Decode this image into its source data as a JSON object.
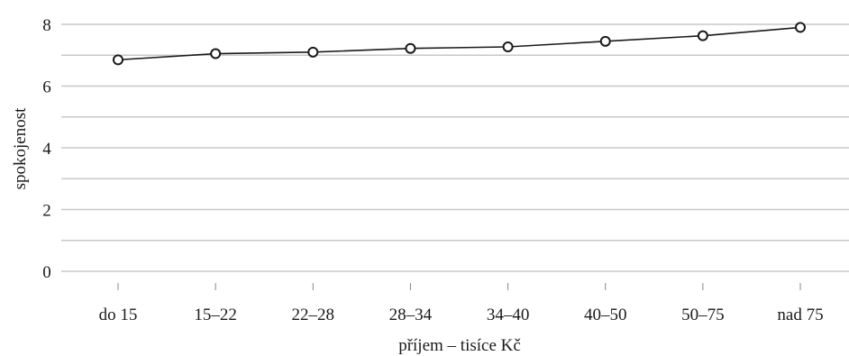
{
  "chart_data": {
    "type": "line",
    "categories": [
      "do 15",
      "15–22",
      "22–28",
      "28–34",
      "34–40",
      "40–50",
      "50–75",
      "nad 75"
    ],
    "series": [
      {
        "values": [
          6.85,
          7.05,
          7.1,
          7.22,
          7.27,
          7.45,
          7.63,
          7.9
        ]
      }
    ],
    "xlabel": "příjem – tisíce Kč",
    "ylabel": "spokojenost",
    "ylim": [
      0,
      8
    ],
    "y_ticks": [
      0,
      2,
      4,
      6,
      8
    ],
    "grid": true,
    "marker": "open-circle",
    "colors": {
      "line": "#1a1a1a",
      "grid": "#c8c8c8",
      "marker_fill": "#ffffff"
    }
  }
}
